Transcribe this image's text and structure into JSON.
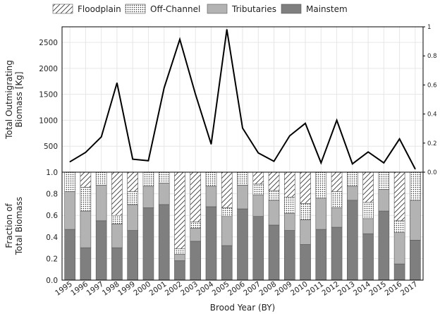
{
  "chart_data": [
    {
      "type": "line",
      "panel": "top",
      "title": "",
      "xlabel": "",
      "ylabel": "Total Outmigrating Biomass [Kg]",
      "ylabel_lines": [
        "Total Outmigrating",
        "Biomass [Kg]"
      ],
      "categories": [
        "1995",
        "1996",
        "1997",
        "1998",
        "1999",
        "2000",
        "2001",
        "2002",
        "2003",
        "2004",
        "2005",
        "2006",
        "2007",
        "2008",
        "2009",
        "2010",
        "2011",
        "2012",
        "2013",
        "2014",
        "2015",
        "2016",
        "2017"
      ],
      "values": [
        200,
        380,
        680,
        1720,
        250,
        220,
        1620,
        2560,
        1500,
        540,
        2750,
        850,
        370,
        210,
        700,
        940,
        180,
        1000,
        160,
        390,
        180,
        640,
        60
      ],
      "ylim": [
        0,
        2800
      ],
      "yticks": [
        "500",
        "1000",
        "1500",
        "2000",
        "2500"
      ],
      "ytick_values": [
        500,
        1000,
        1500,
        2000,
        2500
      ],
      "ylim_right": [
        0,
        1.0
      ],
      "yticks_right": [
        "0.0",
        "0.2",
        "0.4",
        "0.6",
        "0.8",
        "1"
      ],
      "ytick_right_values": [
        0,
        0.2,
        0.4,
        0.6,
        0.8,
        1.0
      ],
      "grid": true
    },
    {
      "type": "bar",
      "stacked": true,
      "panel": "bottom",
      "title": "",
      "xlabel": "Brood Year (BY)",
      "ylabel": "Fraction of Total Biomass",
      "ylabel_lines": [
        "Fraction of",
        "Total Biomass"
      ],
      "categories": [
        "1995",
        "1996",
        "1997",
        "1998",
        "1999",
        "2000",
        "2001",
        "2002",
        "2003",
        "2004",
        "2005",
        "2006",
        "2007",
        "2008",
        "2009",
        "2010",
        "2011",
        "2012",
        "2013",
        "2014",
        "2015",
        "2016",
        "2017"
      ],
      "ylim": [
        0,
        1.0
      ],
      "yticks": [
        "0.0",
        "0.2",
        "0.4",
        "0.6",
        "0.8",
        "1.0"
      ],
      "ytick_values": [
        0,
        0.2,
        0.4,
        0.6,
        0.8,
        1.0
      ],
      "grid": true,
      "series": [
        {
          "name": "Mainstem",
          "color": "#7f7f7f",
          "pattern": "solid",
          "values": [
            0.47,
            0.3,
            0.55,
            0.3,
            0.46,
            0.67,
            0.7,
            0.18,
            0.36,
            0.68,
            0.32,
            0.66,
            0.59,
            0.51,
            0.46,
            0.33,
            0.47,
            0.49,
            0.74,
            0.43,
            0.64,
            0.15,
            0.37
          ]
        },
        {
          "name": "Tributaries",
          "color": "#b3b3b3",
          "pattern": "solid",
          "values": [
            0.35,
            0.34,
            0.33,
            0.22,
            0.24,
            0.2,
            0.2,
            0.06,
            0.12,
            0.19,
            0.27,
            0.22,
            0.2,
            0.23,
            0.16,
            0.23,
            0.29,
            0.18,
            0.13,
            0.14,
            0.2,
            0.29,
            0.37
          ]
        },
        {
          "name": "Off-Channel",
          "color": "#ffffff",
          "pattern": "dots",
          "values": [
            0.18,
            0.22,
            0.12,
            0.08,
            0.12,
            0.13,
            0.1,
            0.05,
            0.06,
            0.13,
            0.08,
            0.12,
            0.1,
            0.09,
            0.15,
            0.15,
            0.24,
            0.15,
            0.13,
            0.15,
            0.16,
            0.11,
            0.26
          ]
        },
        {
          "name": "Floodplain",
          "color": "#ffffff",
          "pattern": "hatch",
          "values": [
            0.0,
            0.14,
            0.0,
            0.4,
            0.18,
            0.0,
            0.0,
            0.71,
            0.46,
            0.0,
            0.33,
            0.0,
            0.11,
            0.17,
            0.23,
            0.29,
            0.0,
            0.18,
            0.0,
            0.28,
            0.0,
            0.45,
            0.0
          ]
        }
      ]
    }
  ],
  "legend": {
    "placement": "top",
    "items": [
      {
        "name": "Floodplain",
        "pattern": "hatch"
      },
      {
        "name": "Off-Channel",
        "pattern": "dots"
      },
      {
        "name": "Tributaries",
        "pattern": "solid",
        "color": "#b3b3b3"
      },
      {
        "name": "Mainstem",
        "pattern": "solid",
        "color": "#7f7f7f"
      }
    ]
  },
  "colors": {
    "line": "#000000",
    "grid": "#e6e6e6",
    "frame": "#000000"
  }
}
